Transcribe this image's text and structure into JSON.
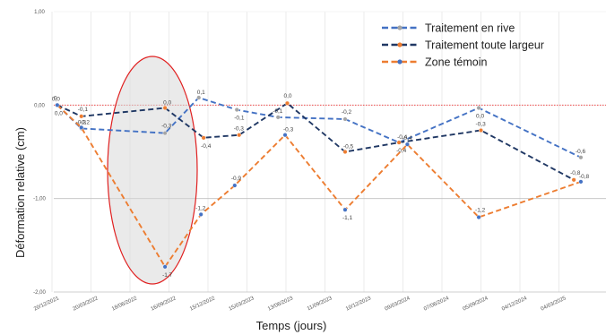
{
  "chart_data": {
    "type": "line",
    "title": "",
    "xlabel": "Temps (jours)",
    "ylabel": "Déformation relative (cm)",
    "ylim": [
      -2.0,
      1.0
    ],
    "y_ticks": [
      "1,00",
      "0,00",
      "-1,00",
      "-2,00"
    ],
    "x_ticks": [
      "20/12/2021",
      "20/03/2022",
      "18/06/2022",
      "16/09/2022",
      "15/12/2022",
      "15/03/2023",
      "13/06/2023",
      "11/09/2023",
      "10/12/2023",
      "09/03/2024",
      "07/06/2024",
      "05/09/2024",
      "04/12/2024",
      "04/03/2025"
    ],
    "grid": true,
    "legend_position": "top-right",
    "series": [
      {
        "name": "Traitement en rive",
        "color": "#4472c4",
        "marker_color": "#a5a5a5",
        "x": [
          "2022-01-01",
          "2022-02-25",
          "2022-09-04",
          "2022-11-20",
          "2023-02-15",
          "2023-05-20",
          "2023-10-20",
          "2024-02-20",
          "2024-08-20",
          "2025-04-10"
        ],
        "y": [
          0.0,
          -0.25,
          -0.3,
          0.08,
          -0.05,
          -0.13,
          -0.15,
          -0.4,
          -0.03,
          -0.56
        ],
        "labels": [
          "0,0",
          "-0,3",
          "-0,3",
          "0,1",
          "-0,1",
          "-0,1",
          "-0,2",
          "-0,4",
          "0,0",
          "-0,6"
        ]
      },
      {
        "name": "Traitement toute largeur",
        "color": "#203864",
        "marker_color": "#ed7d31",
        "x": [
          "2022-01-01",
          "2022-02-25",
          "2022-09-04",
          "2022-12-01",
          "2023-02-20",
          "2023-06-10",
          "2023-10-20",
          "2024-02-20",
          "2024-08-25",
          "2025-03-25"
        ],
        "y": [
          0.0,
          -0.12,
          -0.03,
          -0.35,
          -0.32,
          0.02,
          -0.5,
          -0.4,
          -0.27,
          -0.8
        ],
        "labels": [
          "0,0",
          "-0,1",
          "0,0",
          "-0,4",
          "-0,3",
          "0,0",
          "-0,5",
          "-0,4",
          "-0,3",
          "-0,8"
        ]
      },
      {
        "name": "Zone témoin",
        "color": "#ed7d31",
        "marker_color": "#4472c4",
        "x": [
          "2022-01-01",
          "2022-02-25",
          "2022-09-04",
          "2022-11-25",
          "2023-02-10",
          "2023-06-05",
          "2023-10-20",
          "2024-03-10",
          "2024-08-20",
          "2025-04-10"
        ],
        "y": [
          0.0,
          -0.24,
          -1.73,
          -1.17,
          -0.86,
          -0.32,
          -1.12,
          -0.42,
          -1.2,
          -0.82
        ],
        "labels": [
          "0",
          "-0,2",
          "-1,7",
          "-1,2",
          "-0,9",
          "-0,3",
          "-1,1",
          "-0,4",
          "-1,2",
          "-0,8"
        ]
      }
    ],
    "annotations": []
  }
}
